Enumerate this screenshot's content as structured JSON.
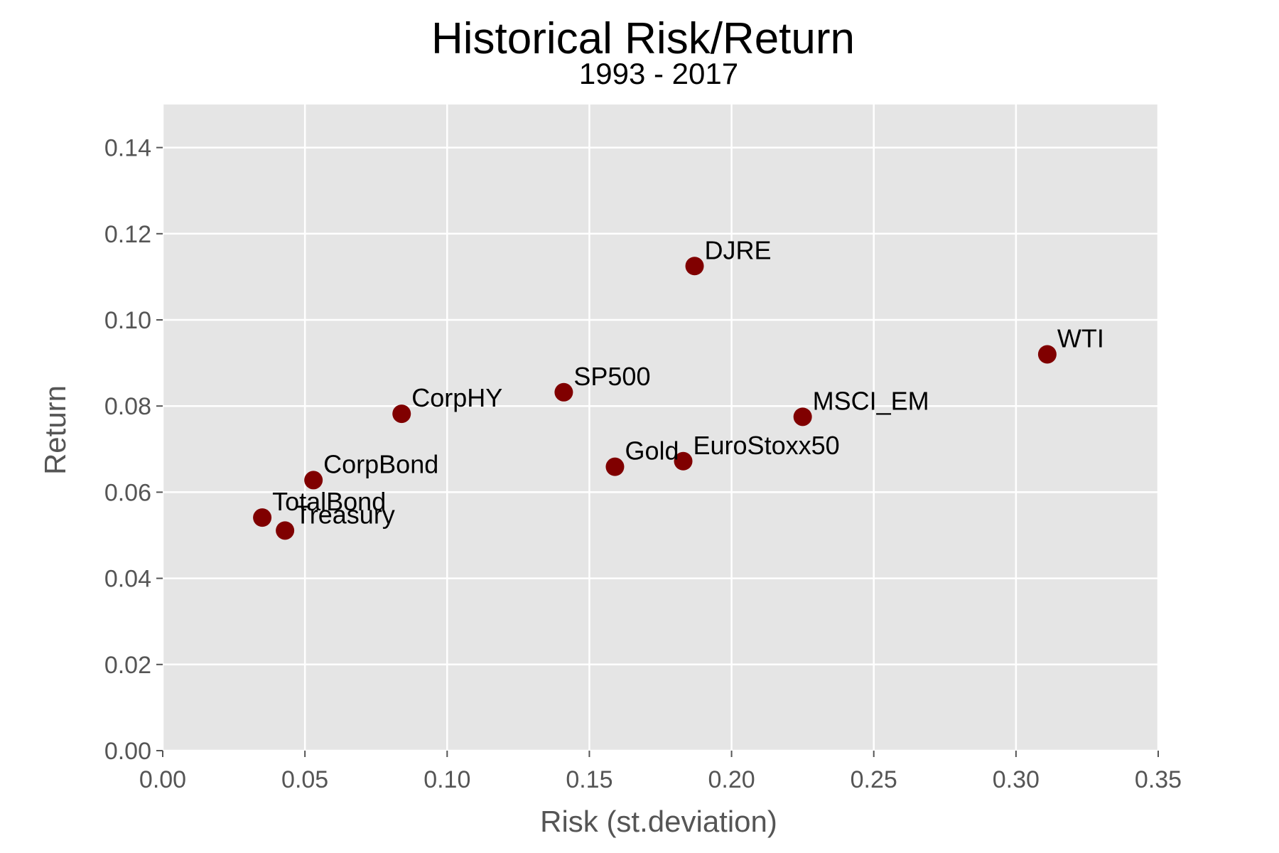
{
  "chart_data": {
    "type": "scatter",
    "title": "Historical Risk/Return",
    "subtitle": "1993 - 2017",
    "xlabel": "Risk (st.deviation)",
    "ylabel": "Return",
    "xlim": [
      0.0,
      0.35
    ],
    "ylim": [
      0.0,
      0.15
    ],
    "xticks": [
      "0.00",
      "0.05",
      "0.10",
      "0.15",
      "0.20",
      "0.25",
      "0.30",
      "0.35"
    ],
    "yticks": [
      "0.00",
      "0.02",
      "0.04",
      "0.06",
      "0.08",
      "0.10",
      "0.12",
      "0.14"
    ],
    "grid": true,
    "colors": {
      "background": "#e5e5e5",
      "grid": "#ffffff",
      "marker": "#800000"
    },
    "points": [
      {
        "label": "DJRE",
        "x": 0.187,
        "y": 0.1125
      },
      {
        "label": "WTI",
        "x": 0.311,
        "y": 0.092
      },
      {
        "label": "SP500",
        "x": 0.141,
        "y": 0.0832
      },
      {
        "label": "CorpHY",
        "x": 0.084,
        "y": 0.0782
      },
      {
        "label": "MSCI_EM",
        "x": 0.225,
        "y": 0.0775
      },
      {
        "label": "EuroStoxx50",
        "x": 0.183,
        "y": 0.0672
      },
      {
        "label": "Gold",
        "x": 0.159,
        "y": 0.0659
      },
      {
        "label": "CorpBond",
        "x": 0.053,
        "y": 0.0628
      },
      {
        "label": "TotalBond",
        "x": 0.035,
        "y": 0.0541
      },
      {
        "label": "Treasury",
        "x": 0.043,
        "y": 0.0511
      }
    ]
  }
}
